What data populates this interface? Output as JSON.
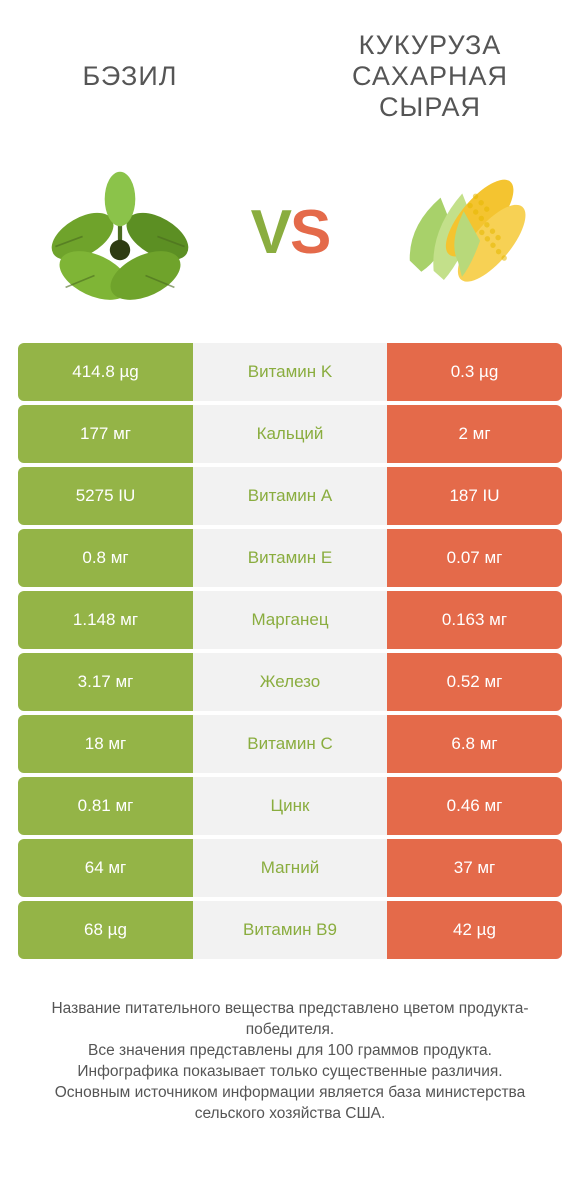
{
  "colors": {
    "left": "#94b447",
    "right": "#e46a4a",
    "mid_bg": "#f2f2f2",
    "mid_text_left": "#8aad3f",
    "title_text": "#555555",
    "white": "#ffffff"
  },
  "header": {
    "left_title": "БЭЗИЛ",
    "right_title": "КУКУРУЗА САХАРНАЯ СЫРАЯ",
    "vs_v": "V",
    "vs_s": "S"
  },
  "rows": [
    {
      "left": "414.8 µg",
      "mid": "Витамин K",
      "right": "0.3 µg",
      "mid_color": "#8aad3f"
    },
    {
      "left": "177 мг",
      "mid": "Кальций",
      "right": "2 мг",
      "mid_color": "#8aad3f"
    },
    {
      "left": "5275 IU",
      "mid": "Витамин A",
      "right": "187 IU",
      "mid_color": "#8aad3f"
    },
    {
      "left": "0.8 мг",
      "mid": "Витамин E",
      "right": "0.07 мг",
      "mid_color": "#8aad3f"
    },
    {
      "left": "1.148 мг",
      "mid": "Марганец",
      "right": "0.163 мг",
      "mid_color": "#8aad3f"
    },
    {
      "left": "3.17 мг",
      "mid": "Железо",
      "right": "0.52 мг",
      "mid_color": "#8aad3f"
    },
    {
      "left": "18 мг",
      "mid": "Витамин C",
      "right": "6.8 мг",
      "mid_color": "#8aad3f"
    },
    {
      "left": "0.81 мг",
      "mid": "Цинк",
      "right": "0.46 мг",
      "mid_color": "#8aad3f"
    },
    {
      "left": "64 мг",
      "mid": "Магний",
      "right": "37 мг",
      "mid_color": "#8aad3f"
    },
    {
      "left": "68 µg",
      "mid": "Витамин B9",
      "right": "42 µg",
      "mid_color": "#8aad3f"
    }
  ],
  "footer": {
    "line1": "Название питательного вещества представлено цветом продукта-победителя.",
    "line2": "Все значения представлены для 100 граммов продукта.",
    "line3": "Инфографика показывает только существенные различия.",
    "line4": "Основным источником информации является база министерства сельского хозяйства США."
  }
}
